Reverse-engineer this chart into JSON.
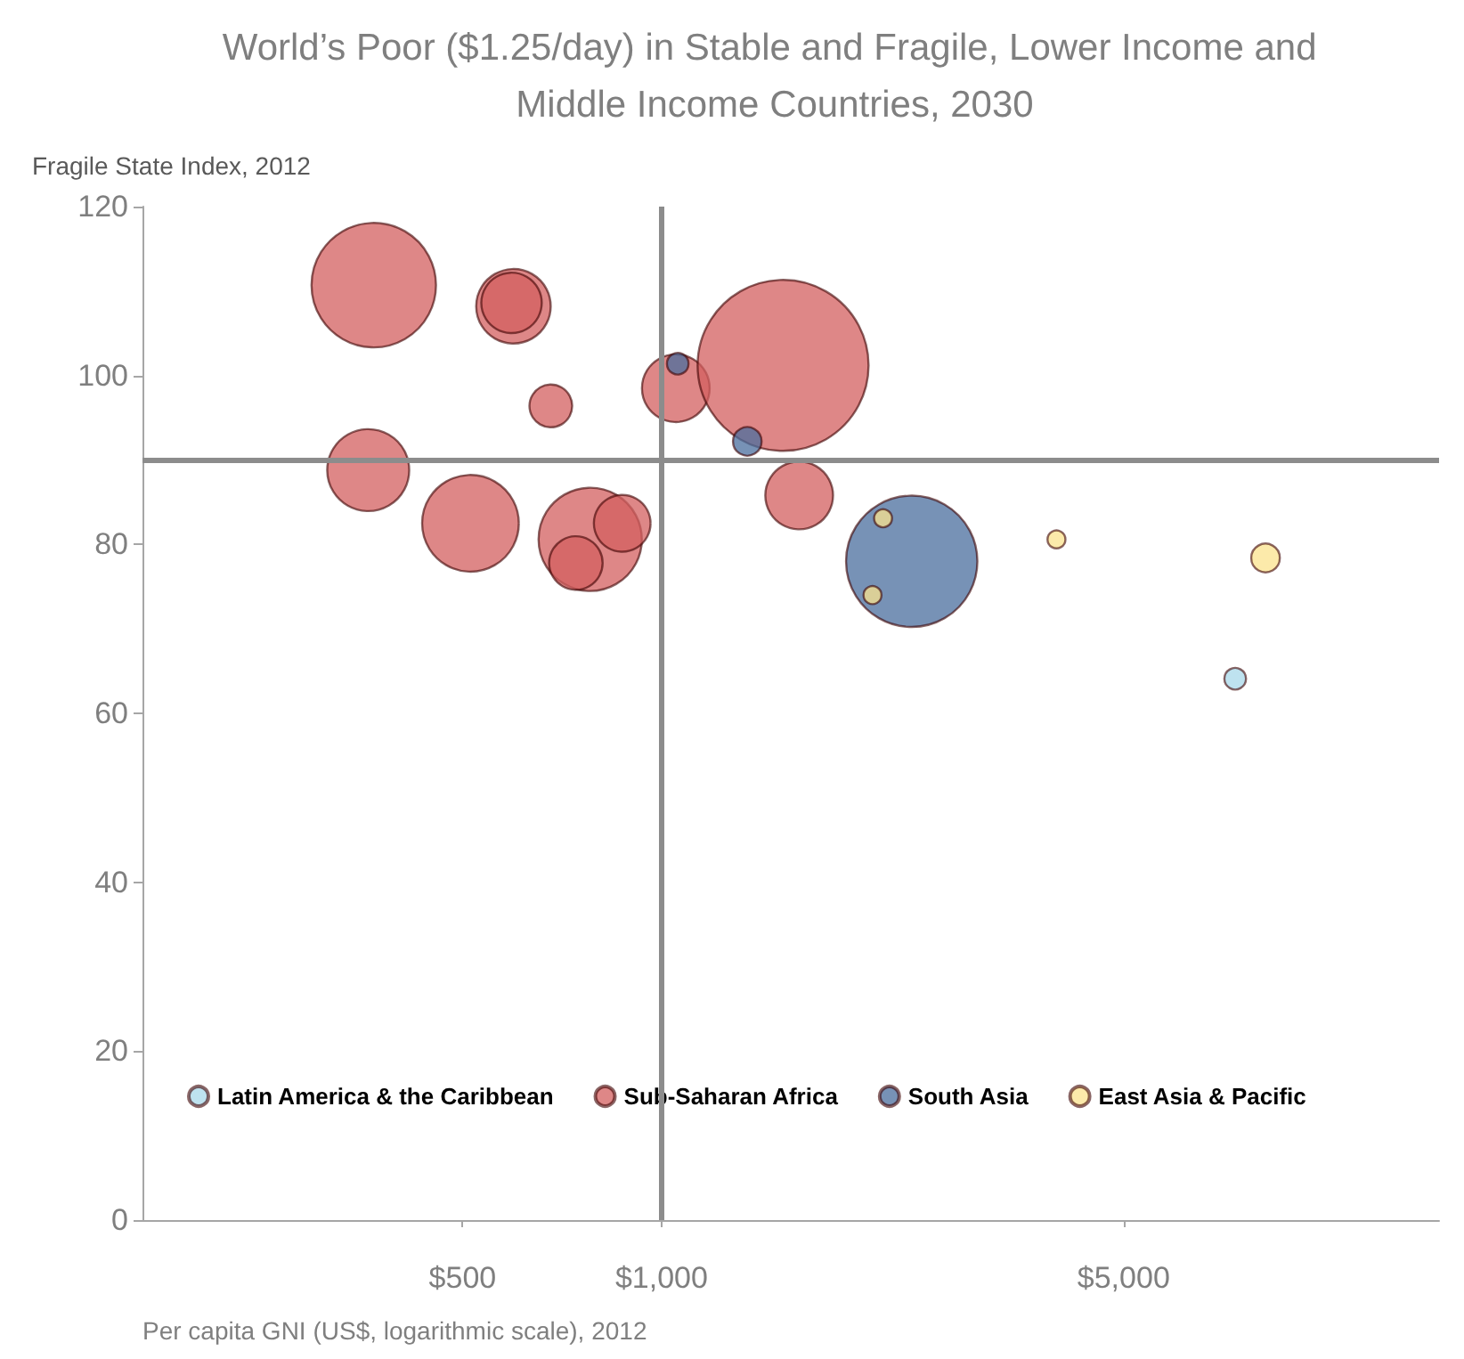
{
  "chart_data": {
    "type": "bubble",
    "title": "World’s Poor ($1.25/day) in Stable and Fragile, Lower Income and Middle Income Countries, 2030",
    "xlabel": "Per capita GNI (US$, logarithmic scale), 2012",
    "ylabel": "Fragile State Index, 2012",
    "log": "x",
    "xlim": [
      164,
      15000
    ],
    "xticks": [
      {
        "value": 500,
        "label": "$500"
      },
      {
        "value": 1000,
        "label": "$1,000"
      },
      {
        "value": 5000,
        "label": "$5,000"
      }
    ],
    "ylim": [
      0,
      120
    ],
    "yticks": [
      0,
      20,
      40,
      60,
      80,
      100,
      120
    ],
    "grid": false,
    "legend": "bottom",
    "ref_lines": [
      {
        "axis": "x",
        "value": 1000,
        "color": "#8c8c8c"
      },
      {
        "axis": "y",
        "value": 90,
        "color": "#8c8c8c"
      }
    ],
    "series": [
      {
        "name": "Latin America & the Caribbean",
        "color": "#a8d8ea",
        "x": [
          7374
        ],
        "values": [
          64.1
        ],
        "sizes": [
          0.016
        ]
      },
      {
        "name": "Sub-Saharan Africa",
        "color": "#d35f5f",
        "x": [
          367,
          597,
          593,
          680,
          360,
          514,
          780,
          742,
          872,
          1051,
          1527,
          1615
        ],
        "values": [
          110.7,
          108.2,
          108.6,
          96.4,
          88.8,
          82.5,
          80.6,
          77.8,
          82.5,
          98.5,
          101.2,
          85.8
        ],
        "sizes": [
          0.53,
          0.19,
          0.125,
          0.0625,
          0.23,
          0.32,
          0.365,
          0.098,
          0.11,
          0.157,
          1,
          0.157
        ]
      },
      {
        "name": "South Asia",
        "color": "#4a6e9e",
        "x": [
          1058,
          1348,
          2390
        ],
        "values": [
          101.4,
          92.2,
          78.0
        ],
        "sizes": [
          0.016,
          0.028,
          0.59
        ]
      },
      {
        "name": "East Asia & Pacific",
        "color": "#fbe38e",
        "x": [
          2163,
          2085,
          3957,
          8196
        ],
        "values": [
          83.1,
          74.0,
          80.6,
          78.4
        ],
        "sizes": [
          0.011,
          0.011,
          0.011,
          0.028
        ]
      }
    ]
  }
}
